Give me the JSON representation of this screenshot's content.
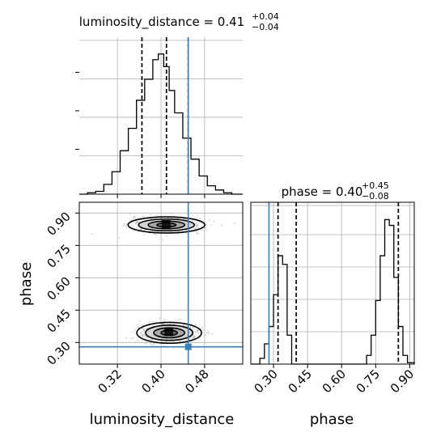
{
  "chart_data": {
    "type": "corner",
    "parameters": [
      "luminosity_distance",
      "phase"
    ],
    "truths": {
      "luminosity_distance": 0.45,
      "phase": 0.28
    },
    "colors": {
      "hist": "#000000",
      "truth": "#3a80b8",
      "grid": "#b0b0b0",
      "points": "#9a9a9a"
    },
    "grid": true,
    "panels": [
      {
        "id": "luminosity_distance_1d",
        "kind": "hist1d",
        "title": {
          "prefix": "luminosity_distance = 0.41",
          "sup": "+0.04",
          "sub": "−0.04"
        },
        "xlim": [
          0.25,
          0.55
        ],
        "ylim": [
          0,
          1
        ],
        "bin_edges": [
          0.25,
          0.265,
          0.28,
          0.295,
          0.31,
          0.325,
          0.34,
          0.355,
          0.37,
          0.385,
          0.395,
          0.405,
          0.415,
          0.425,
          0.44,
          0.455,
          0.47,
          0.485,
          0.5,
          0.515,
          0.53,
          0.55
        ],
        "counts": [
          0.0,
          0.01,
          0.02,
          0.07,
          0.16,
          0.31,
          0.47,
          0.67,
          0.82,
          0.96,
          1.0,
          0.91,
          0.74,
          0.58,
          0.4,
          0.25,
          0.13,
          0.06,
          0.03,
          0.01,
          0.0
        ],
        "quantiles": [
          0.365,
          0.41,
          0.45
        ],
        "truth": 0.45
      },
      {
        "id": "phase_1d",
        "kind": "hist1d",
        "title": {
          "prefix": "phase = 0.40",
          "sup": "+0.45",
          "sub": "−0.08"
        },
        "xlim": [
          0.2,
          0.92
        ],
        "ylim": [
          0,
          1
        ],
        "bin_edges": [
          0.2,
          0.24,
          0.26,
          0.28,
          0.3,
          0.32,
          0.34,
          0.36,
          0.38,
          0.4,
          0.42,
          0.71,
          0.73,
          0.75,
          0.77,
          0.79,
          0.81,
          0.83,
          0.85,
          0.87,
          0.89,
          0.92
        ],
        "counts": [
          0.0,
          0.04,
          0.14,
          0.26,
          0.48,
          0.75,
          0.69,
          0.2,
          0.0,
          0.0,
          0.0,
          0.06,
          0.2,
          0.44,
          0.75,
          1.0,
          0.96,
          0.6,
          0.26,
          0.06,
          0.01
        ],
        "quantiles": [
          0.32,
          0.4,
          0.85
        ],
        "truth": 0.28
      },
      {
        "id": "joint_2d",
        "kind": "hist2d",
        "xlim": [
          0.25,
          0.55
        ],
        "ylim": [
          0.2,
          0.95
        ],
        "modes": [
          {
            "x": 0.41,
            "y": 0.845,
            "sx": 0.032,
            "sy": 0.017
          },
          {
            "x": 0.415,
            "y": 0.345,
            "sx": 0.027,
            "sy": 0.022
          }
        ],
        "truth": {
          "x": 0.45,
          "y": 0.28
        }
      }
    ],
    "axes": {
      "luminosity_distance": {
        "label": "luminosity_distance",
        "ticks": [
          "0.32",
          "0.40",
          "0.48"
        ],
        "tick_values": [
          0.32,
          0.4,
          0.48
        ]
      },
      "phase_y": {
        "label": "phase",
        "ticks": [
          "0.30",
          "0.45",
          "0.60",
          "0.75",
          "0.90"
        ],
        "tick_values": [
          0.3,
          0.45,
          0.6,
          0.75,
          0.9
        ]
      },
      "phase_x": {
        "label": "phase",
        "ticks": [
          "0.30",
          "0.45",
          "0.60",
          "0.75",
          "0.90"
        ],
        "tick_values": [
          0.3,
          0.45,
          0.6,
          0.75,
          0.9
        ]
      }
    }
  }
}
